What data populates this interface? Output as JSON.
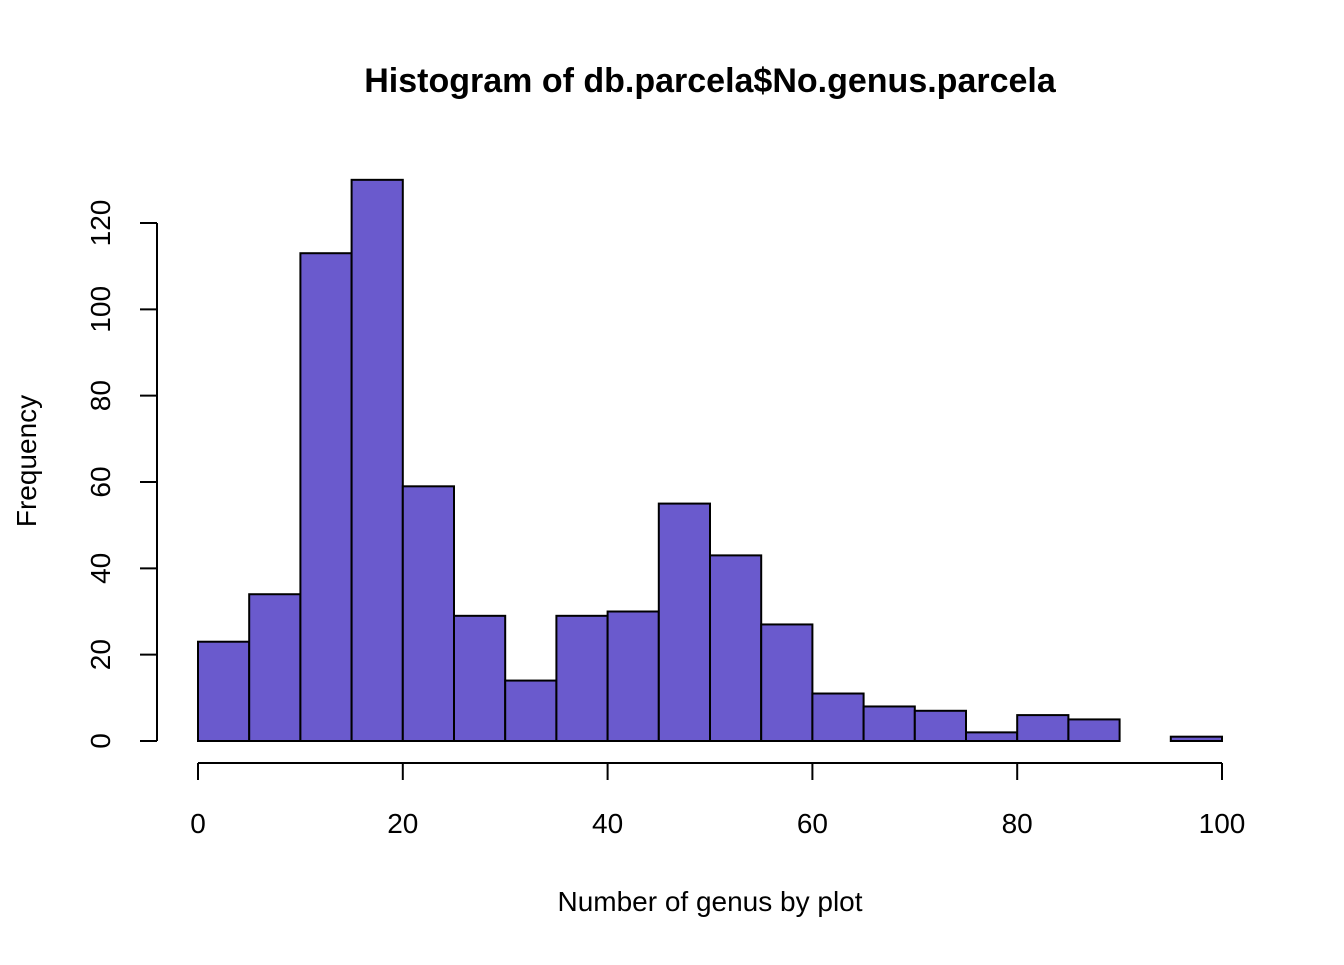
{
  "chart_data": {
    "type": "bar",
    "title": "Histogram of db.parcela$No.genus.parcela",
    "xlabel": "Number of genus by plot",
    "ylabel": "Frequency",
    "bar_color": "#6A5ACD",
    "border_color": "#000000",
    "bins": [
      {
        "from": 0,
        "to": 5,
        "count": 23
      },
      {
        "from": 5,
        "to": 10,
        "count": 34
      },
      {
        "from": 10,
        "to": 15,
        "count": 113
      },
      {
        "from": 15,
        "to": 20,
        "count": 130
      },
      {
        "from": 20,
        "to": 25,
        "count": 59
      },
      {
        "from": 25,
        "to": 30,
        "count": 29
      },
      {
        "from": 30,
        "to": 35,
        "count": 14
      },
      {
        "from": 35,
        "to": 40,
        "count": 29
      },
      {
        "from": 40,
        "to": 45,
        "count": 30
      },
      {
        "from": 45,
        "to": 50,
        "count": 55
      },
      {
        "from": 50,
        "to": 55,
        "count": 43
      },
      {
        "from": 55,
        "to": 60,
        "count": 27
      },
      {
        "from": 60,
        "to": 65,
        "count": 11
      },
      {
        "from": 65,
        "to": 70,
        "count": 8
      },
      {
        "from": 70,
        "to": 75,
        "count": 7
      },
      {
        "from": 75,
        "to": 80,
        "count": 2
      },
      {
        "from": 80,
        "to": 85,
        "count": 6
      },
      {
        "from": 85,
        "to": 90,
        "count": 5
      },
      {
        "from": 90,
        "to": 95,
        "count": 0
      },
      {
        "from": 95,
        "to": 100,
        "count": 1
      }
    ],
    "xlim": [
      0,
      100
    ],
    "ylim": [
      0,
      120
    ],
    "x_ticks": [
      0,
      20,
      40,
      60,
      80,
      100
    ],
    "y_ticks": [
      0,
      20,
      40,
      60,
      80,
      100,
      120
    ],
    "x_tick_labels": [
      "0",
      "20",
      "40",
      "60",
      "80",
      "100"
    ],
    "y_tick_labels": [
      "0",
      "20",
      "40",
      "60",
      "80",
      "100",
      "120"
    ],
    "grid": false,
    "legend": "none"
  }
}
